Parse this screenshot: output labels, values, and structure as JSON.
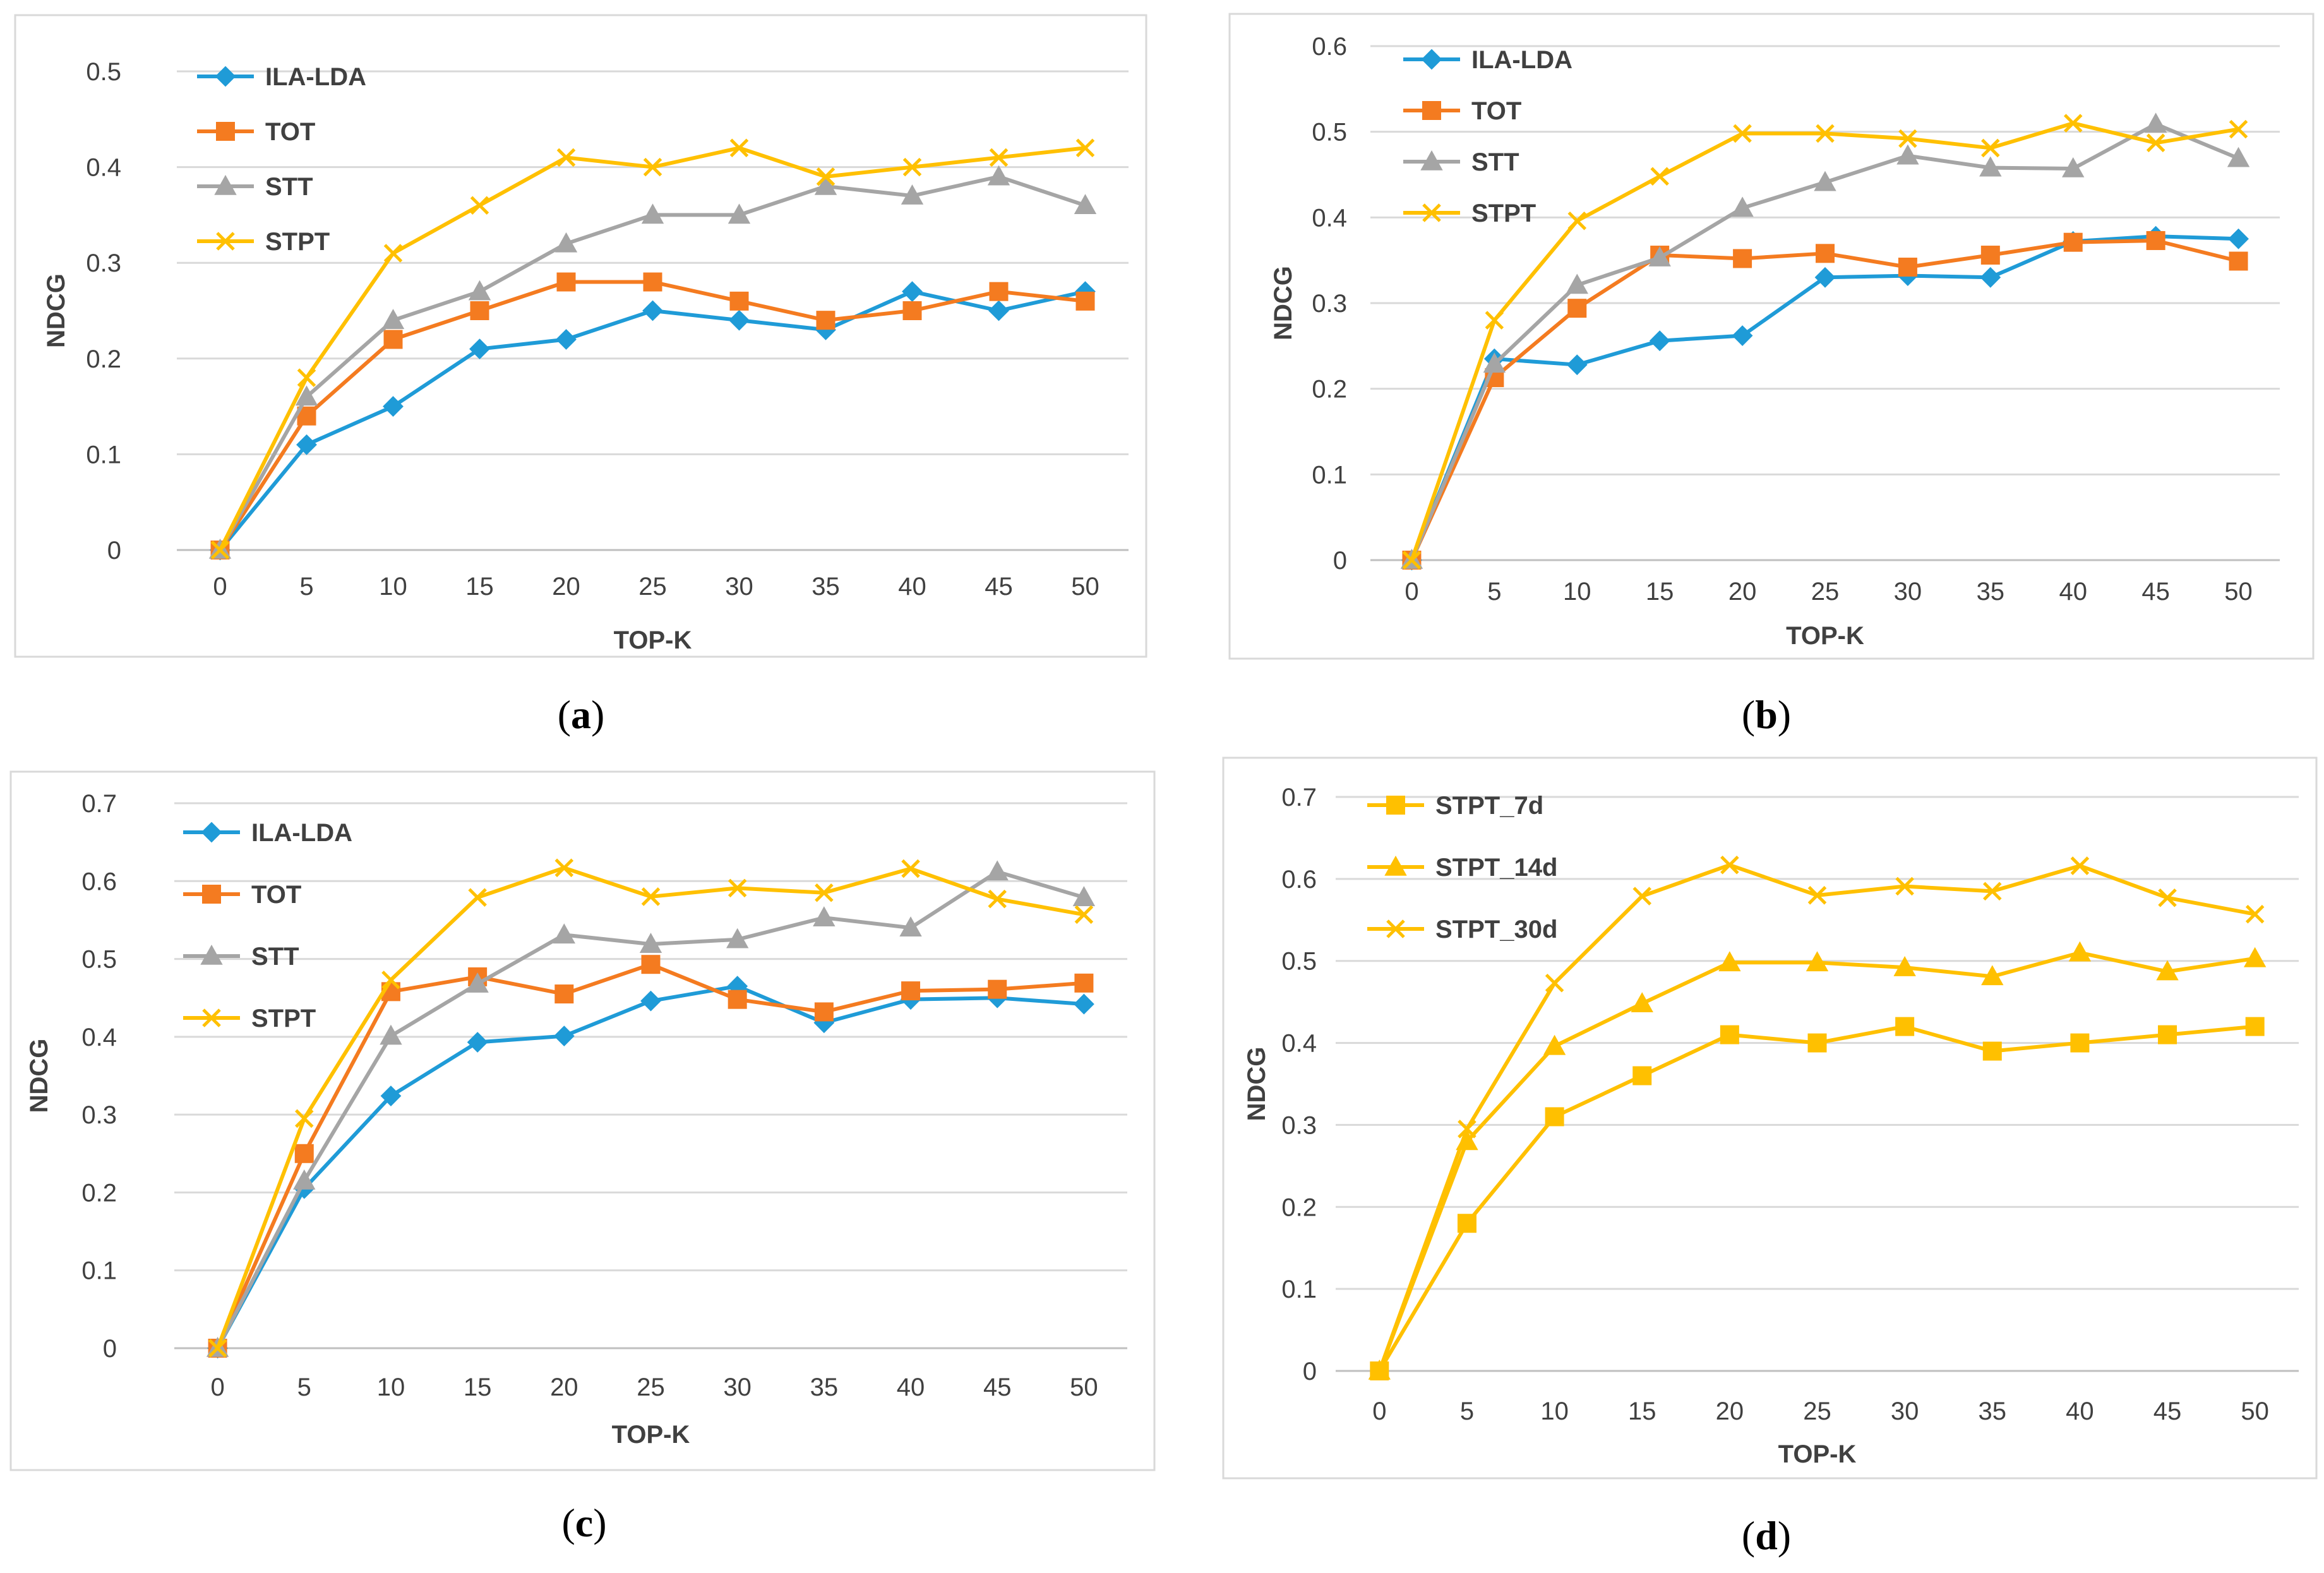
{
  "chart_data": [
    {
      "id": "a",
      "type": "line",
      "caption": "a",
      "xlabel": "TOP-K",
      "ylabel": "NDCG",
      "categories": [
        "0",
        "5",
        "10",
        "15",
        "20",
        "25",
        "30",
        "35",
        "40",
        "45",
        "50"
      ],
      "ylim": [
        0,
        0.5
      ],
      "yticks": [
        "0",
        "0.1",
        "0.2",
        "0.3",
        "0.4",
        "0.5"
      ],
      "legend_position": "top-left",
      "series": [
        {
          "name": "ILA-LDA",
          "color": "#1f9bd7",
          "marker": "diamond",
          "values": [
            0,
            0.11,
            0.15,
            0.21,
            0.22,
            0.25,
            0.24,
            0.23,
            0.27,
            0.25,
            0.27
          ]
        },
        {
          "name": "TOT",
          "color": "#f47b20",
          "marker": "square",
          "values": [
            0,
            0.14,
            0.22,
            0.25,
            0.28,
            0.28,
            0.26,
            0.24,
            0.25,
            0.27,
            0.26
          ]
        },
        {
          "name": "STT",
          "color": "#a5a5a5",
          "marker": "triangle",
          "values": [
            0,
            0.16,
            0.24,
            0.27,
            0.32,
            0.35,
            0.35,
            0.38,
            0.37,
            0.39,
            0.36
          ]
        },
        {
          "name": "STPT",
          "color": "#ffc000",
          "marker": "x",
          "values": [
            0,
            0.18,
            0.31,
            0.36,
            0.41,
            0.4,
            0.42,
            0.39,
            0.4,
            0.41,
            0.42
          ]
        }
      ]
    },
    {
      "id": "b",
      "type": "line",
      "caption": "b",
      "xlabel": "TOP-K",
      "ylabel": "NDCG",
      "categories": [
        "0",
        "5",
        "10",
        "15",
        "20",
        "25",
        "30",
        "35",
        "40",
        "45",
        "50"
      ],
      "ylim": [
        0,
        0.6
      ],
      "yticks": [
        "0",
        "0.1",
        "0.2",
        "0.3",
        "0.4",
        "0.5",
        "0.6"
      ],
      "legend_position": "top-left",
      "series": [
        {
          "name": "ILA-LDA",
          "color": "#1f9bd7",
          "marker": "diamond",
          "values": [
            0,
            0.235,
            0.228,
            0.256,
            0.262,
            0.33,
            0.332,
            0.33,
            0.372,
            0.378,
            0.375
          ]
        },
        {
          "name": "TOT",
          "color": "#f47b20",
          "marker": "square",
          "values": [
            0,
            0.213,
            0.294,
            0.356,
            0.352,
            0.358,
            0.342,
            0.356,
            0.371,
            0.373,
            0.349
          ]
        },
        {
          "name": "STT",
          "color": "#a5a5a5",
          "marker": "triangle",
          "values": [
            0,
            0.229,
            0.321,
            0.353,
            0.411,
            0.441,
            0.472,
            0.458,
            0.457,
            0.509,
            0.469
          ]
        },
        {
          "name": "STPT",
          "color": "#ffc000",
          "marker": "x",
          "values": [
            0,
            0.28,
            0.396,
            0.448,
            0.498,
            0.498,
            0.492,
            0.481,
            0.51,
            0.487,
            0.503
          ]
        }
      ]
    },
    {
      "id": "c",
      "type": "line",
      "caption": "c",
      "xlabel": "TOP-K",
      "ylabel": "NDCG",
      "categories": [
        "0",
        "5",
        "10",
        "15",
        "20",
        "25",
        "30",
        "35",
        "40",
        "45",
        "50"
      ],
      "ylim": [
        0,
        0.7
      ],
      "yticks": [
        "0",
        "0.1",
        "0.2",
        "0.3",
        "0.4",
        "0.5",
        "0.6",
        "0.7"
      ],
      "legend_position": "top-left",
      "series": [
        {
          "name": "ILA-LDA",
          "color": "#1f9bd7",
          "marker": "diamond",
          "values": [
            0,
            0.205,
            0.324,
            0.393,
            0.401,
            0.446,
            0.465,
            0.418,
            0.448,
            0.45,
            0.442
          ]
        },
        {
          "name": "TOT",
          "color": "#f47b20",
          "marker": "square",
          "values": [
            0,
            0.25,
            0.458,
            0.477,
            0.455,
            0.493,
            0.448,
            0.432,
            0.459,
            0.461,
            0.469
          ]
        },
        {
          "name": "STT",
          "color": "#a5a5a5",
          "marker": "triangle",
          "values": [
            0,
            0.215,
            0.401,
            0.468,
            0.531,
            0.519,
            0.525,
            0.553,
            0.54,
            0.612,
            0.579
          ]
        },
        {
          "name": "STPT",
          "color": "#ffc000",
          "marker": "x",
          "values": [
            0,
            0.295,
            0.473,
            0.579,
            0.617,
            0.58,
            0.591,
            0.585,
            0.616,
            0.577,
            0.557
          ]
        }
      ]
    },
    {
      "id": "d",
      "type": "line",
      "caption": "d",
      "xlabel": "TOP-K",
      "ylabel": "NDCG",
      "categories": [
        "0",
        "5",
        "10",
        "15",
        "20",
        "25",
        "30",
        "35",
        "40",
        "45",
        "50"
      ],
      "ylim": [
        0,
        0.7
      ],
      "yticks": [
        "0",
        "0.1",
        "0.2",
        "0.3",
        "0.4",
        "0.5",
        "0.6",
        "0.7"
      ],
      "legend_position": "top-left",
      "series": [
        {
          "name": "STPT_7d",
          "color": "#ffc000",
          "marker": "square",
          "values": [
            0,
            0.18,
            0.31,
            0.36,
            0.41,
            0.4,
            0.42,
            0.39,
            0.4,
            0.41,
            0.42
          ]
        },
        {
          "name": "STPT_14d",
          "color": "#ffc000",
          "marker": "triangle",
          "values": [
            0,
            0.28,
            0.396,
            0.448,
            0.498,
            0.498,
            0.492,
            0.481,
            0.51,
            0.487,
            0.503
          ]
        },
        {
          "name": "STPT_30d",
          "color": "#ffc000",
          "marker": "x",
          "values": [
            0,
            0.295,
            0.473,
            0.579,
            0.617,
            0.58,
            0.591,
            0.585,
            0.616,
            0.577,
            0.557
          ]
        }
      ]
    }
  ]
}
